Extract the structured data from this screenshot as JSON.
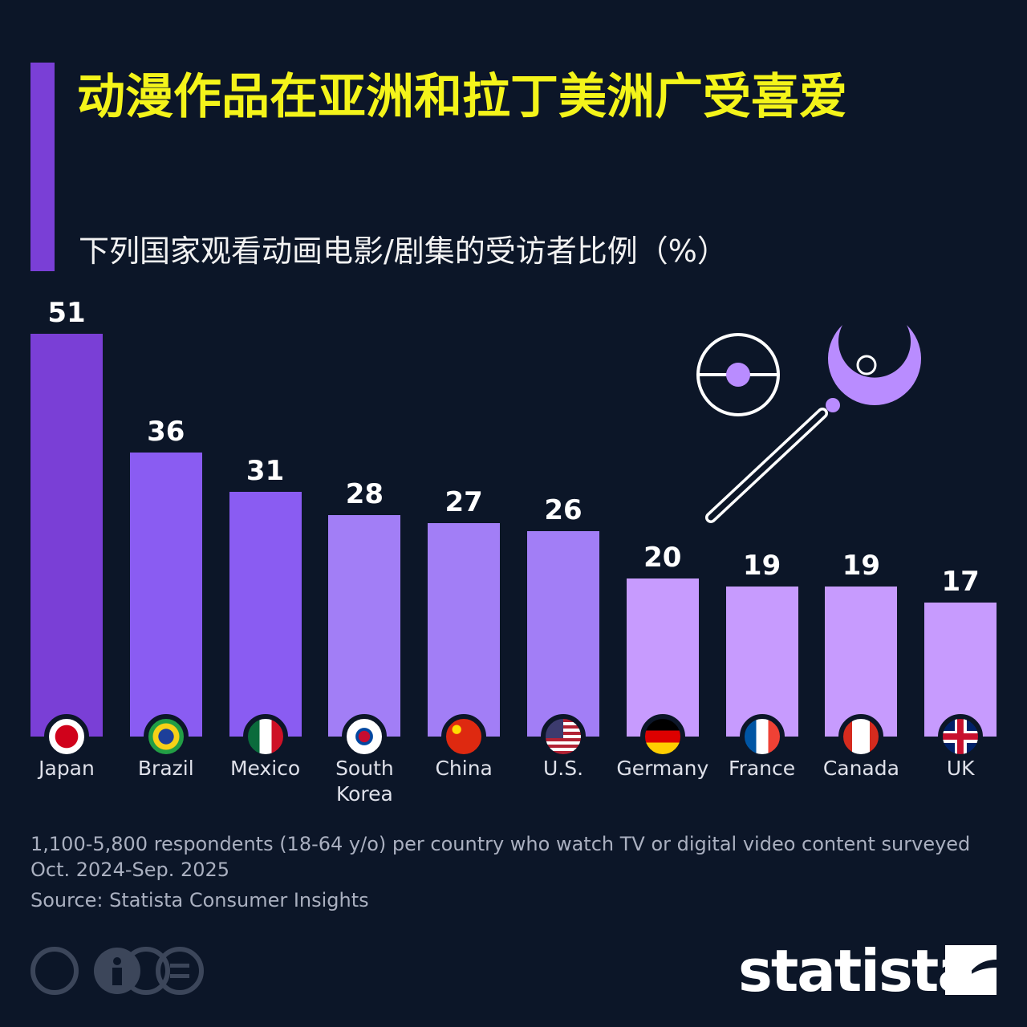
{
  "chart_data": {
    "type": "bar",
    "title": "动漫作品在亚洲和拉丁美洲广受喜爱",
    "subtitle": "下列国家观看动画电影/剧集的受访者比例（%）",
    "categories": [
      "Japan",
      "Brazil",
      "Mexico",
      "South Korea",
      "China",
      "U.S.",
      "Germany",
      "France",
      "Canada",
      "UK"
    ],
    "values": [
      51,
      36,
      31,
      28,
      27,
      26,
      20,
      19,
      19,
      17
    ],
    "colors": [
      "#7a3fd6",
      "#8a5cf2",
      "#8a5cf2",
      "#a27ef6",
      "#a27ef6",
      "#a27ef6",
      "#c79bfe",
      "#c79bfe",
      "#c79bfe",
      "#c79bfe"
    ],
    "note": "1,100-5,800 respondents (18-64 y/o) per country who watch TV or digital video content surveyed Oct. 2024-Sep. 2025",
    "source": "Source: Statista Consumer Insights",
    "logo": "statista"
  }
}
